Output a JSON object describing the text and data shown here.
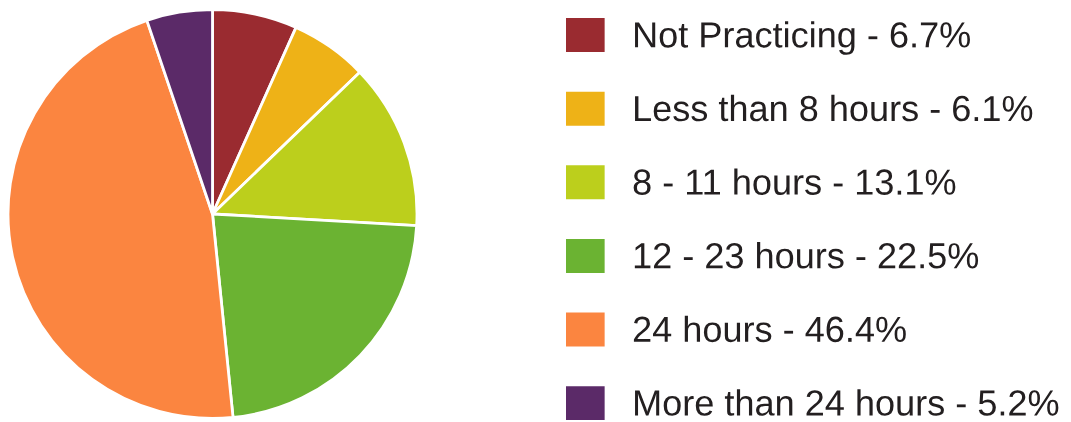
{
  "chart_data": {
    "type": "pie",
    "categories": [
      "Not Practicing - 6.7%",
      "Less than 8 hours - 6.1%",
      "8 - 11 hours - 13.1%",
      "12 - 23 hours - 22.5%",
      "24 hours - 46.4%",
      "More than 24 hours - 5.2%"
    ],
    "values": [
      6.7,
      6.1,
      13.1,
      22.5,
      46.4,
      5.2
    ],
    "colors": [
      "#9a2b30",
      "#eeb217",
      "#bccf1c",
      "#6bb332",
      "#fb8540",
      "#5b2a68"
    ],
    "legend": "right"
  }
}
